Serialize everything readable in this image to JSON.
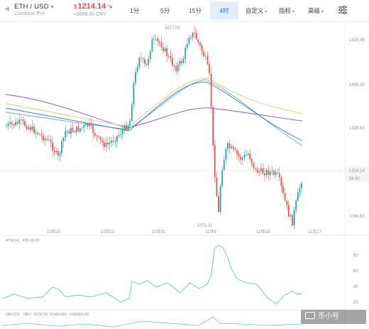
{
  "header": {
    "pair": "ETH / USD",
    "exchange": "Coinbase Pro",
    "price": "1214.14",
    "currency_symbol": "$",
    "cny_value": "≈8668.60 CNY",
    "price_color": "#e8454c"
  },
  "timeframes": [
    "1分",
    "5分",
    "15分",
    "4时"
  ],
  "active_timeframe": "4时",
  "menus": {
    "custom": "自定义",
    "indicators": "指标",
    "advanced": "高级"
  },
  "icons": {
    "back": "chevron-left-icon",
    "pair_dropdown": "chevron-down-icon",
    "down_arrow": "down-right-arrow-icon",
    "settings": "settings-sliders-icon"
  },
  "chart": {
    "y_labels": [
      "1635.98",
      "1480.30",
      "1339.63",
      "1096.63"
    ],
    "current_price_label": "1214.14",
    "countdown_label": "56:42",
    "high_label": "1677.00",
    "low_label": "1071.11",
    "x_labels": [
      "10月15",
      "10月22",
      "10月31",
      "11月9",
      "11月18",
      "11月27"
    ],
    "atr_label": "ATR(14)",
    "atr_value": "ATR 28.06",
    "atr_ticks": [
      "80",
      "60",
      "40",
      "20"
    ],
    "obv_label": "OBV(20)",
    "obv_value": "OBV -1078730.79 MAOBV -1065969.65",
    "colors": {
      "up": "#26a69a",
      "down": "#ef5350",
      "ma_purple": "#8e4fbf",
      "ma_teal": "#5fb3b3",
      "ma_blue": "#3f6ed8",
      "ma_yellow": "#c8d27a",
      "indicator": "#5ec8c0"
    }
  },
  "watermark": {
    "text": "币小号"
  }
}
